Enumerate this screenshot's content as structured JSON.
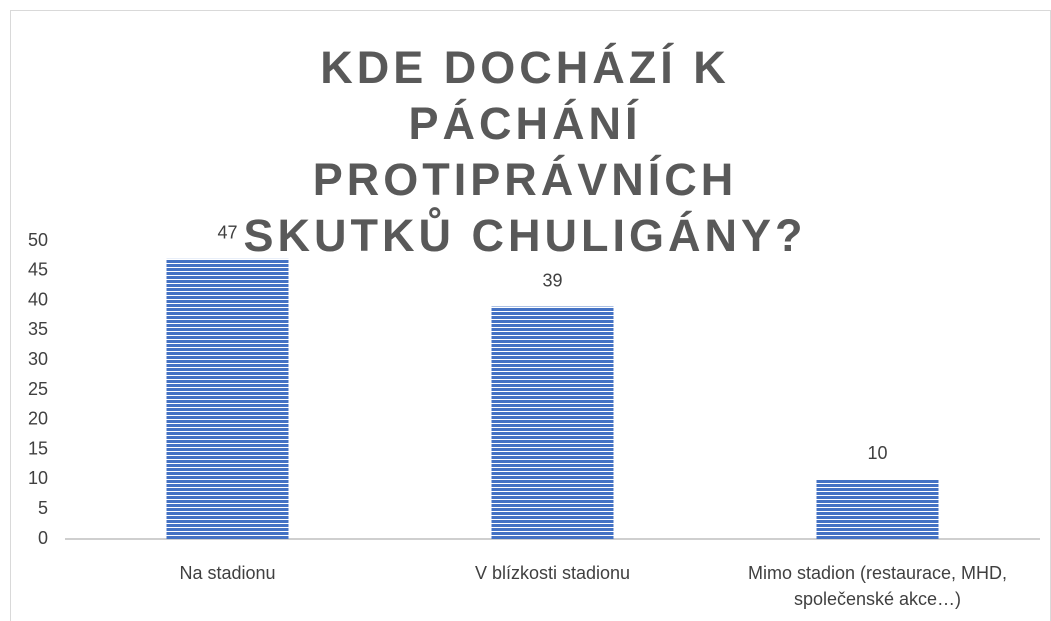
{
  "chart_data": {
    "type": "bar",
    "title": "KDE DOCHÁZÍ K PÁCHÁNÍ PROTIPRÁVNÍCH SKUTKŮ CHULIGÁNY?",
    "categories": [
      "Na stadionu",
      "V blízkosti stadionu",
      "Mimo stadion (restaurace, MHD, společenské akce…)"
    ],
    "values": [
      47,
      39,
      10
    ],
    "color": "#4472c4",
    "ylim": [
      0,
      50
    ],
    "yticks": [
      0,
      5,
      10,
      15,
      20,
      25,
      30,
      35,
      40,
      45,
      50
    ],
    "grid": false
  }
}
